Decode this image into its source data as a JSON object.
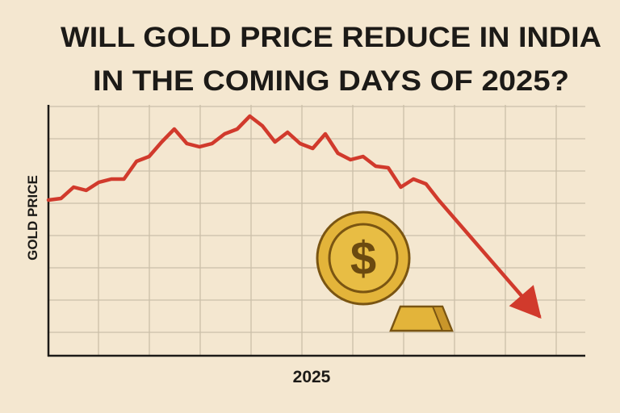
{
  "chart_data": {
    "type": "line",
    "title": [
      "WILL GOLD PRICE REDUCE IN INDIA",
      "IN THE COMING DAYS OF 2025?"
    ],
    "ylabel": "GOLD PRICE",
    "xlabel": "2025",
    "annotations": [
      "$"
    ],
    "ylim": [
      0,
      8
    ],
    "grid": true,
    "series": [
      {
        "color": "#d13a2c",
        "values": [
          4.8,
          4.85,
          5.2,
          5.1,
          5.35,
          5.45,
          5.45,
          6.0,
          6.15,
          6.6,
          7.0,
          6.55,
          6.45,
          6.55,
          6.85,
          7.0,
          7.4,
          7.1,
          6.6,
          6.9,
          6.55,
          6.4,
          6.85,
          6.25,
          6.05,
          6.15,
          5.85,
          5.8,
          5.2,
          5.45,
          5.3,
          4.8,
          4.35,
          3.9,
          3.45,
          3.0,
          2.55,
          2.1,
          1.65,
          1.2
        ]
      }
    ]
  }
}
